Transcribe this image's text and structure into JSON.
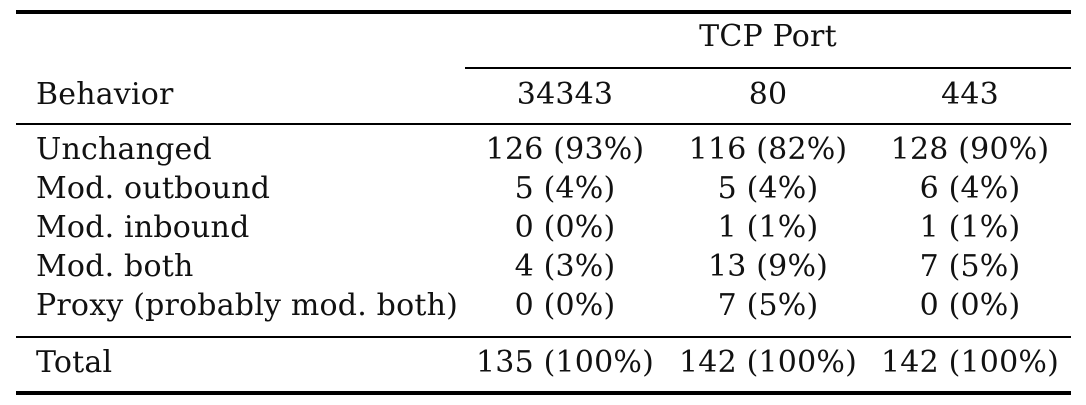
{
  "table": {
    "group_header": "TCP Port",
    "row_header_label": "Behavior",
    "columns": [
      "34343",
      "80",
      "443"
    ],
    "rows": [
      {
        "label": "Unchanged",
        "values": [
          "126 (93%)",
          "116 (82%)",
          "128 (90%)"
        ]
      },
      {
        "label": "Mod. outbound",
        "values": [
          "5 (4%)",
          "5 (4%)",
          "6 (4%)"
        ]
      },
      {
        "label": "Mod. inbound",
        "values": [
          "0 (0%)",
          "1 (1%)",
          "1 (1%)"
        ]
      },
      {
        "label": "Mod. both",
        "values": [
          "4 (3%)",
          "13 (9%)",
          "7 (5%)"
        ]
      },
      {
        "label": "Proxy (probably mod. both)",
        "values": [
          "0 (0%)",
          "7 (5%)",
          "0 (0%)"
        ]
      }
    ],
    "total": {
      "label": "Total",
      "values": [
        "135 (100%)",
        "142 (100%)",
        "142 (100%)"
      ]
    }
  }
}
